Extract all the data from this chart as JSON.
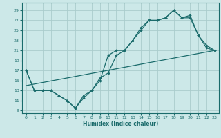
{
  "xlabel": "Humidex (Indice chaleur)",
  "bg_color": "#cce8e8",
  "grid_color": "#aacccc",
  "line_color": "#1a6b6b",
  "xlim": [
    -0.5,
    23.5
  ],
  "ylim": [
    8.5,
    30.5
  ],
  "xticks": [
    0,
    1,
    2,
    3,
    4,
    5,
    6,
    7,
    8,
    9,
    10,
    11,
    12,
    13,
    14,
    15,
    16,
    17,
    18,
    19,
    20,
    21,
    22,
    23
  ],
  "yticks": [
    9,
    11,
    13,
    15,
    17,
    19,
    21,
    23,
    25,
    27,
    29
  ],
  "line1_x": [
    0,
    1,
    2,
    3,
    4,
    5,
    6,
    7,
    8,
    9,
    10,
    11,
    12,
    13,
    14,
    15,
    16,
    17,
    18,
    19,
    20,
    21,
    22,
    23
  ],
  "line1_y": [
    17,
    13,
    13,
    13,
    12,
    11,
    9.5,
    12,
    13,
    15.5,
    16.5,
    20,
    21,
    23,
    25.5,
    27,
    27,
    27.5,
    29,
    27.5,
    28,
    24,
    22,
    21
  ],
  "line2_x": [
    0,
    1,
    2,
    3,
    4,
    5,
    6,
    7,
    8,
    9,
    10,
    11,
    12,
    13,
    14,
    15,
    16,
    17,
    18,
    19,
    20,
    21,
    22,
    23
  ],
  "line2_y": [
    17,
    13,
    13,
    13,
    12,
    11,
    9.5,
    11.5,
    13,
    15,
    20,
    21,
    21,
    23,
    25,
    27,
    27,
    27.5,
    29,
    27.5,
    27.5,
    24,
    21.5,
    21
  ],
  "line3_x": [
    0,
    23
  ],
  "line3_y": [
    14,
    21
  ]
}
